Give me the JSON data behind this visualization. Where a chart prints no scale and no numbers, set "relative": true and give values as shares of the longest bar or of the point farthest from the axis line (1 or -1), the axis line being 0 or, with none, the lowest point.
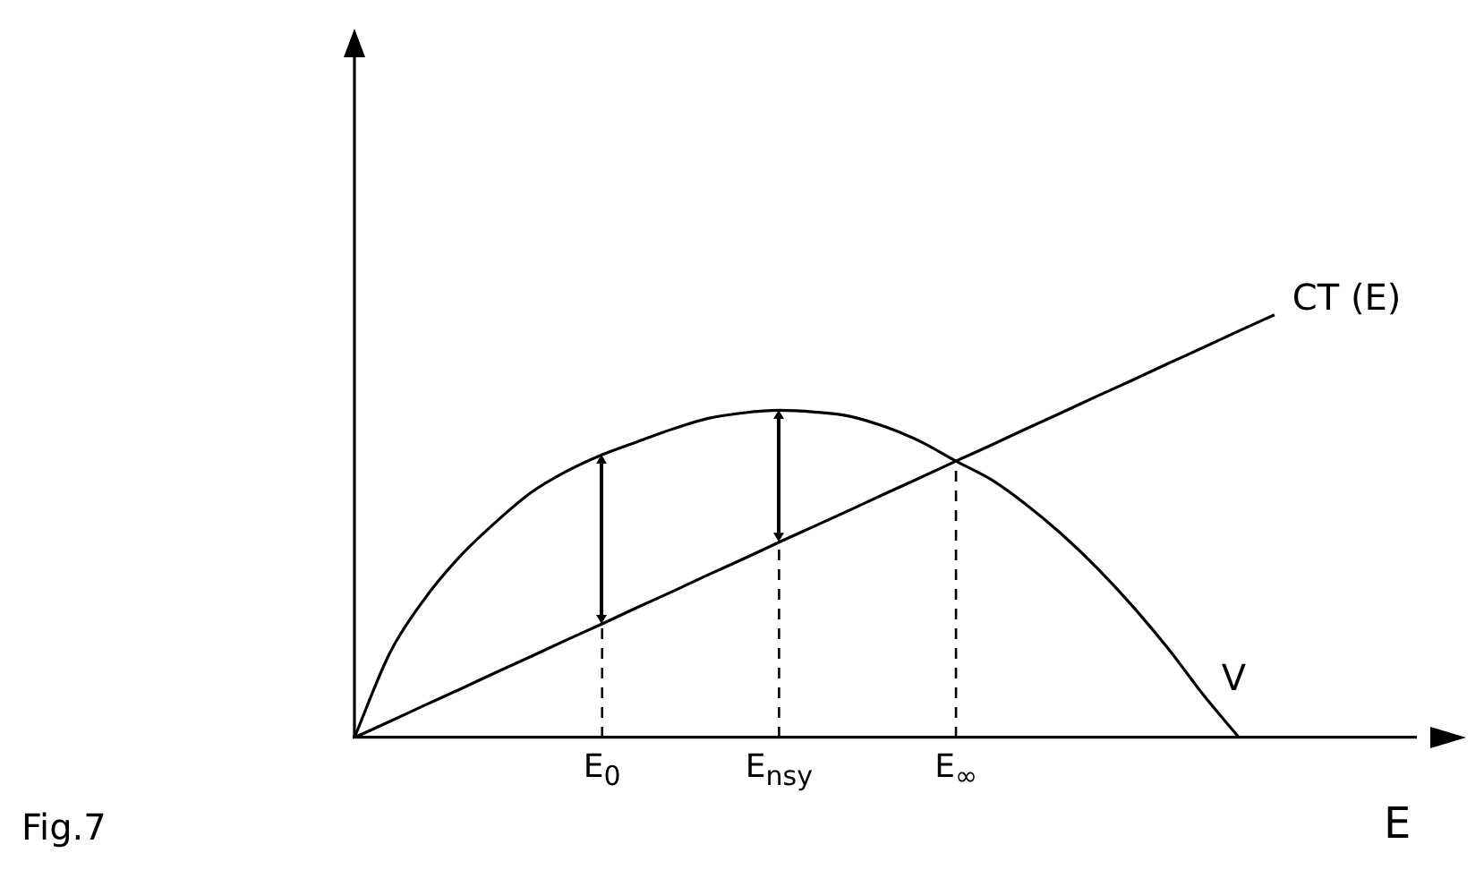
{
  "chart_data": {
    "type": "line",
    "relative": true,
    "xlabel": "E",
    "annotations": [
      "Fig.7"
    ],
    "categories": [
      null,
      null,
      null,
      null,
      null,
      null,
      null,
      "E$_{0}$",
      null,
      null,
      null,
      null,
      "E$_{nsy}$",
      null,
      null,
      null,
      null,
      "E$_{∞}$",
      null,
      null,
      null,
      null,
      null,
      null,
      null,
      null,
      null,
      null,
      null,
      null,
      null
    ],
    "series": [
      {
        "name": "V",
        "color": "#000000",
        "values": [
          0,
          0.2,
          0.33,
          0.43,
          0.51,
          0.58,
          0.63,
          0.669,
          0.7,
          0.73,
          0.755,
          0.768,
          0.774,
          0.77,
          0.76,
          0.735,
          0.7,
          0.654,
          0.61,
          0.55,
          0.48,
          0.4,
          0.31,
          0.21,
          0.1,
          0,
          null,
          null,
          null,
          null,
          null
        ]
      },
      {
        "name": "CT (E)",
        "color": "#000000",
        "values": [
          0,
          0.038,
          0.077,
          0.115,
          0.154,
          0.192,
          0.231,
          0.269,
          0.308,
          0.346,
          0.385,
          0.423,
          0.462,
          0.5,
          0.538,
          0.577,
          0.615,
          0.654,
          0.692,
          0.731,
          0.769,
          0.808,
          0.846,
          0.885,
          0.923,
          0.962,
          1,
          null,
          null,
          null,
          null
        ]
      }
    ],
    "ref_lines": [
      {
        "axis": "x",
        "value": "E$_{0}$",
        "line_style": "dashed"
      },
      {
        "axis": "x",
        "value": "E$_{nsy}$",
        "line_style": "dashed"
      },
      {
        "axis": "x",
        "value": "E$_{∞}$",
        "line_style": "dashed"
      }
    ],
    "marker": "none",
    "line_style": "solid",
    "legend": false,
    "grid": false
  }
}
